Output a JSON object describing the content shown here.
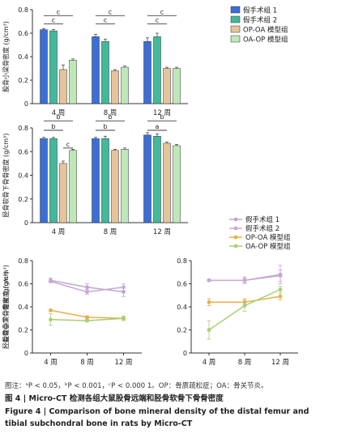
{
  "colors": {
    "sham1": "#3b6fd6",
    "sham2": "#43b89b",
    "op_oa": "#e6c49b",
    "oa_op": "#bfe8b8",
    "line_sham1": "#c0a6cf",
    "line_sham2": "#c9a8d6",
    "line_op_oa": "#e9b04a",
    "line_oa_op": "#a8cf73",
    "axis": "#333333",
    "sig": "#222222"
  },
  "legend_bars": [
    "假手术组 1",
    "假手术组 2",
    "OP-OA 模型组",
    "OA-OP 模型组"
  ],
  "legend_lines": [
    "假手术组 1",
    "假手术组 2",
    "OP-OA 模型组",
    "OA-OP 模型组"
  ],
  "chart_data": [
    {
      "type": "bar",
      "ylabel": "股骨小梁骨密度 (g/cm³)",
      "categories": [
        "4 周",
        "8 周",
        "12 周"
      ],
      "ylim": [
        0,
        0.8
      ],
      "yticks": [
        "0",
        "0.2",
        "0.4",
        "0.6",
        "0.8"
      ],
      "series": [
        {
          "name": "假手术组 1",
          "values": [
            0.63,
            0.57,
            0.53
          ],
          "errors": [
            0.01,
            0.02,
            0.03
          ]
        },
        {
          "name": "假手术组 2",
          "values": [
            0.62,
            0.53,
            0.57
          ],
          "errors": [
            0.01,
            0.02,
            0.03
          ]
        },
        {
          "name": "OP-OA 模型组",
          "values": [
            0.29,
            0.28,
            0.3
          ],
          "errors": [
            0.04,
            0.01,
            0.01
          ]
        },
        {
          "name": "OA-OP 模型组",
          "values": [
            0.37,
            0.31,
            0.3
          ],
          "errors": [
            0.01,
            0.01,
            0.01
          ]
        }
      ],
      "significance": [
        {
          "group": 0,
          "from": 0,
          "to": 3,
          "label": "c",
          "level": 0.75
        },
        {
          "group": 0,
          "from": 0,
          "to": 2,
          "label": "c",
          "level": 0.68
        },
        {
          "group": 1,
          "from": 0,
          "to": 3,
          "label": "c",
          "level": 0.75
        },
        {
          "group": 1,
          "from": 0,
          "to": 2,
          "label": "c",
          "level": 0.68
        },
        {
          "group": 2,
          "from": 0,
          "to": 3,
          "label": "c",
          "level": 0.75
        },
        {
          "group": 2,
          "from": 0,
          "to": 2,
          "label": "c",
          "level": 0.68
        }
      ]
    },
    {
      "type": "bar",
      "ylabel": "胫骨软骨下骨骨密度 (g/cm³)",
      "categories": [
        "4 周",
        "8 周",
        "12 周"
      ],
      "ylim": [
        0,
        0.8
      ],
      "yticks": [
        "0",
        "0.2",
        "0.4",
        "0.6",
        "0.8"
      ],
      "series": [
        {
          "name": "假手术组 1",
          "values": [
            0.71,
            0.71,
            0.74
          ],
          "errors": [
            0.01,
            0.01,
            0.02
          ]
        },
        {
          "name": "假手术组 2",
          "values": [
            0.71,
            0.71,
            0.73
          ],
          "errors": [
            0.01,
            0.02,
            0.02
          ]
        },
        {
          "name": "OP-OA 模型组",
          "values": [
            0.5,
            0.61,
            0.67
          ],
          "errors": [
            0.02,
            0.01,
            0.01
          ]
        },
        {
          "name": "OA-OP 模型组",
          "values": [
            0.61,
            0.62,
            0.65
          ],
          "errors": [
            0.01,
            0.01,
            0.01
          ]
        }
      ],
      "significance": [
        {
          "group": 0,
          "from": 0,
          "to": 3,
          "label": "b",
          "level": 0.86
        },
        {
          "group": 0,
          "from": 0,
          "to": 2,
          "label": "b",
          "level": 0.78
        },
        {
          "group": 0,
          "from": 2,
          "to": 3,
          "label": "c",
          "level": 0.63
        },
        {
          "group": 1,
          "from": 0,
          "to": 3,
          "label": "b",
          "level": 0.86
        },
        {
          "group": 1,
          "from": 0,
          "to": 2,
          "label": "b",
          "level": 0.78
        },
        {
          "group": 2,
          "from": 0,
          "to": 3,
          "label": "b",
          "level": 0.86
        },
        {
          "group": 2,
          "from": 0,
          "to": 2,
          "label": "a",
          "level": 0.78
        }
      ]
    },
    {
      "type": "line",
      "ylabel": "股骨小梁骨密度 (g/cm³)",
      "categories": [
        "4 周",
        "8 周",
        "12 周"
      ],
      "ylim": [
        0,
        0.8
      ],
      "yticks": [
        "0",
        "0.2",
        "0.4",
        "0.6",
        "0.8"
      ],
      "series": [
        {
          "name": "假手术组 1",
          "values": [
            0.63,
            0.57,
            0.53
          ],
          "errors": [
            0.02,
            0.03,
            0.04
          ]
        },
        {
          "name": "假手术组 2",
          "values": [
            0.62,
            0.53,
            0.57
          ],
          "errors": [
            0.01,
            0.02,
            0.03
          ]
        },
        {
          "name": "OP-OA 模型组",
          "values": [
            0.37,
            0.31,
            0.3
          ],
          "errors": [
            0.01,
            0.01,
            0.01
          ]
        },
        {
          "name": "OA-OP 模型组",
          "values": [
            0.29,
            0.28,
            0.3
          ],
          "errors": [
            0.05,
            0.01,
            0.02
          ]
        }
      ]
    },
    {
      "type": "line",
      "ylabel": "胫骨软骨下骨骨密度 (g/cm³)",
      "categories": [
        "4 周",
        "8 周",
        "12 周"
      ],
      "ylim": [
        0,
        0.8
      ],
      "yticks": [
        "0",
        "0.2",
        "0.4",
        "0.6",
        "0.8"
      ],
      "series": [
        {
          "name": "假手术组 1",
          "values": [
            0.63,
            0.63,
            0.68
          ],
          "errors": [
            0.01,
            0.02,
            0.08
          ]
        },
        {
          "name": "假手术组 2",
          "values": [
            0.63,
            0.63,
            0.67
          ],
          "errors": [
            0.01,
            0.03,
            0.05
          ]
        },
        {
          "name": "OP-OA 模型组",
          "values": [
            0.44,
            0.44,
            0.49
          ],
          "errors": [
            0.03,
            0.03,
            0.03
          ]
        },
        {
          "name": "OA-OP 模型组",
          "values": [
            0.2,
            0.41,
            0.55
          ],
          "errors": [
            0.08,
            0.05,
            0.03
          ]
        }
      ]
    }
  ],
  "caption": {
    "note": "图注：ᵃP < 0.05，ᵇP < 0.001，ᶜP < 0.000 1。OP：骨质疏松症；OA：骨关节炎。",
    "title_cn": "图 4  |  Micro-CT 检测各组大鼠股骨远端和胫骨软骨下骨骨密度",
    "title_en_1": "Figure 4  |  Comparison of bone mineral density of the distal femur and",
    "title_en_2": "tibial subchondral bone in rats by Micro-CT"
  }
}
